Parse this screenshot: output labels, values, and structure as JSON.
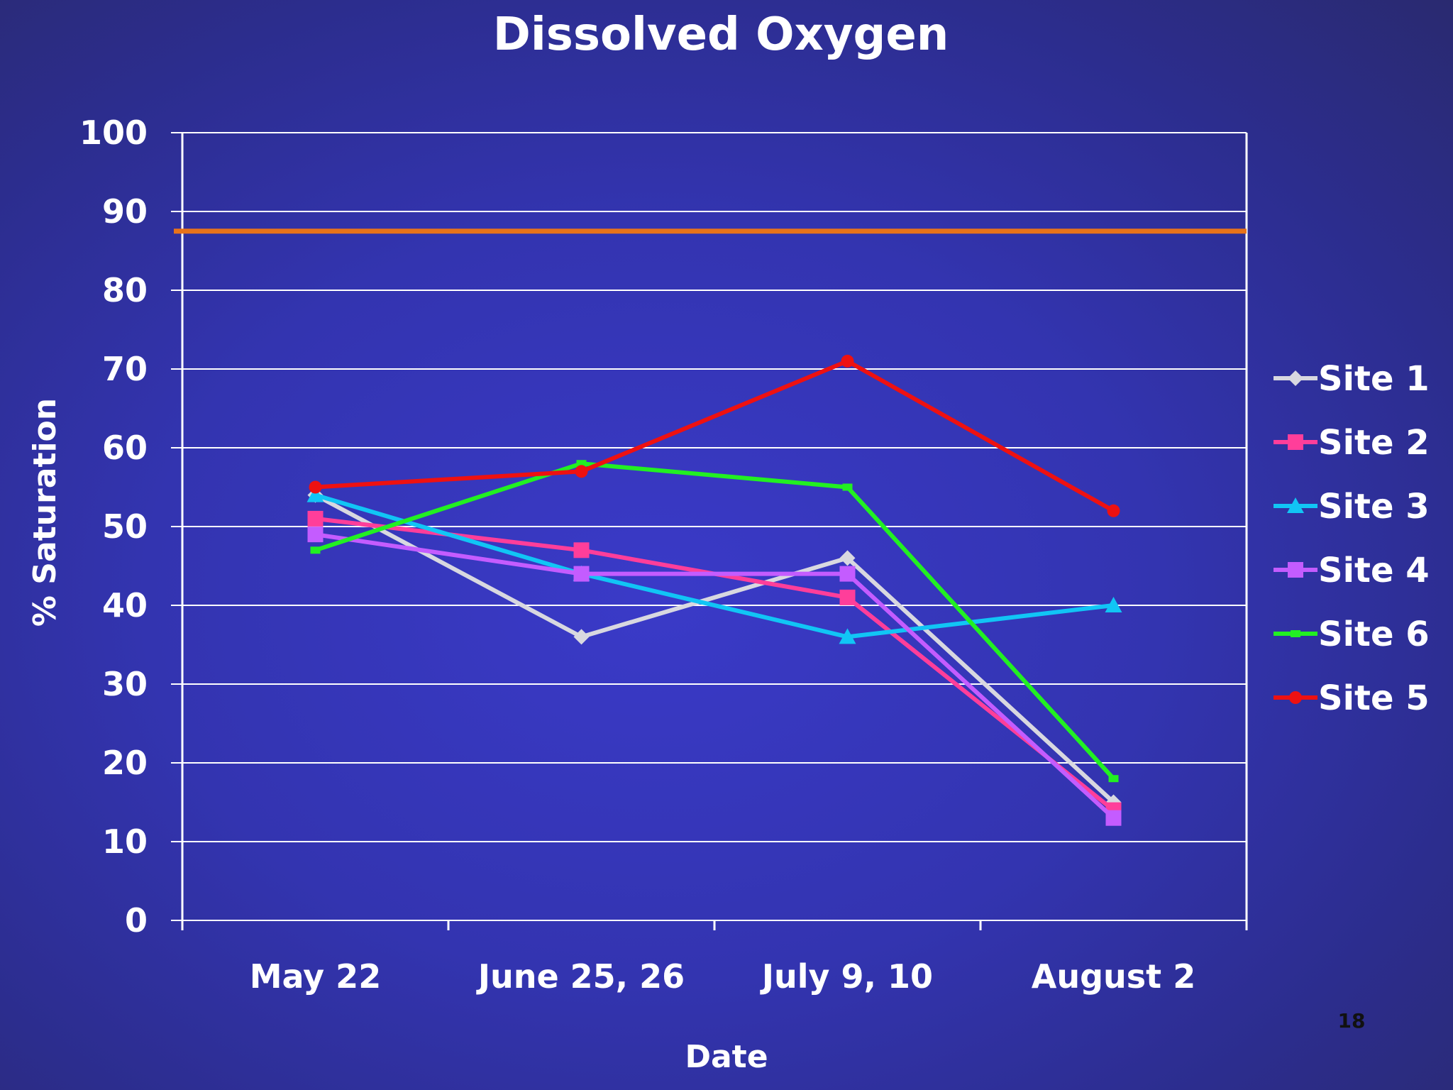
{
  "chart_data": {
    "type": "line",
    "title": "Dissolved Oxygen",
    "xlabel": "Date",
    "ylabel": "% Saturation",
    "categories": [
      "May 22",
      "June 25, 26",
      "July 9, 10",
      "August 2"
    ],
    "ylim": [
      0,
      100
    ],
    "yticks": [
      0,
      10,
      20,
      30,
      40,
      50,
      60,
      70,
      80,
      90,
      100
    ],
    "grid": true,
    "legend_position": "right",
    "reference_line": {
      "value": 87.5,
      "color": "#e8731a"
    },
    "series": [
      {
        "name": "Site 1",
        "color": "#d8d8e0",
        "marker": "diamond",
        "values": [
          54,
          36,
          46,
          15
        ]
      },
      {
        "name": "Site 2",
        "color": "#ff3e9a",
        "marker": "square",
        "values": [
          51,
          47,
          41,
          14
        ]
      },
      {
        "name": "Site 3",
        "color": "#11c5f5",
        "marker": "triangle",
        "values": [
          54,
          44,
          36,
          40
        ]
      },
      {
        "name": "Site 4",
        "color": "#c45cff",
        "marker": "square",
        "values": [
          49,
          44,
          44,
          13
        ]
      },
      {
        "name": "Site 6",
        "color": "#22f022",
        "marker": "dash",
        "values": [
          47,
          58,
          55,
          18
        ]
      },
      {
        "name": "Site 5",
        "color": "#ee1111",
        "marker": "circle",
        "values": [
          55,
          57,
          71,
          52
        ]
      }
    ]
  },
  "page_number": "18"
}
